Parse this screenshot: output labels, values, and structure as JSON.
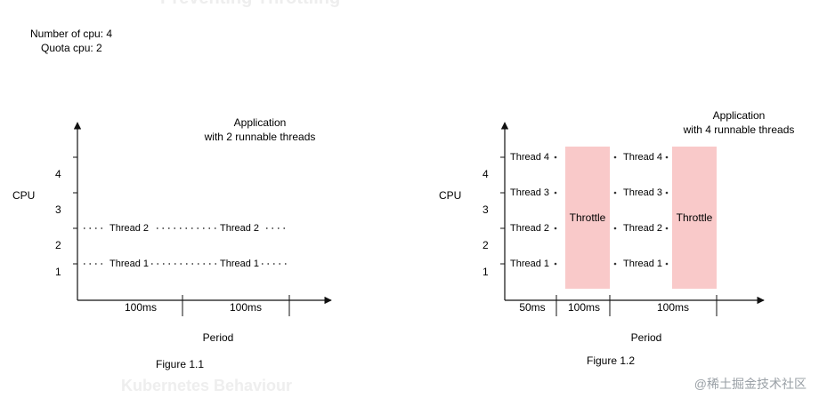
{
  "header": {
    "top_ghost_text": "Preventing Throttling",
    "cpu_count_label": "Number of cpu: 4",
    "quota_label": "Quota cpu: 2"
  },
  "footer": {
    "ghost_title": "Kubernetes Behaviour",
    "watermark": "@稀土掘金技术社区"
  },
  "figures": [
    {
      "caption": "Figure 1.1",
      "y_axis_label": "CPU",
      "x_axis_label": "Period",
      "y_ticks": [
        "1",
        "2",
        "3",
        "4"
      ],
      "annotation": [
        "Application",
        "with 2 runnable threads"
      ],
      "period_labels": [
        "100ms",
        "100ms"
      ],
      "threads": [
        {
          "label": "Thread 1",
          "cpu": 1
        },
        {
          "label": "Thread 2",
          "cpu": 2
        }
      ],
      "throttle_label": ""
    },
    {
      "caption": "Figure 1.2",
      "y_axis_label": "CPU",
      "x_axis_label": "Period",
      "y_ticks": [
        "1",
        "2",
        "3",
        "4"
      ],
      "annotation": [
        "Application",
        "with 4 runnable threads"
      ],
      "period_labels": [
        "50ms",
        "100ms",
        "100ms"
      ],
      "threads": [
        {
          "label": "Thread 1",
          "cpu": 1
        },
        {
          "label": "Thread 2",
          "cpu": 2
        },
        {
          "label": "Thread 3",
          "cpu": 3
        },
        {
          "label": "Thread 4",
          "cpu": 4
        }
      ],
      "throttle_label": "Throttle"
    }
  ],
  "colors": {
    "axis": "#111111",
    "throttle_fill": "#f9c9c9",
    "ghost_text": "#eeeeee",
    "watermark": "#9aa0a6"
  }
}
